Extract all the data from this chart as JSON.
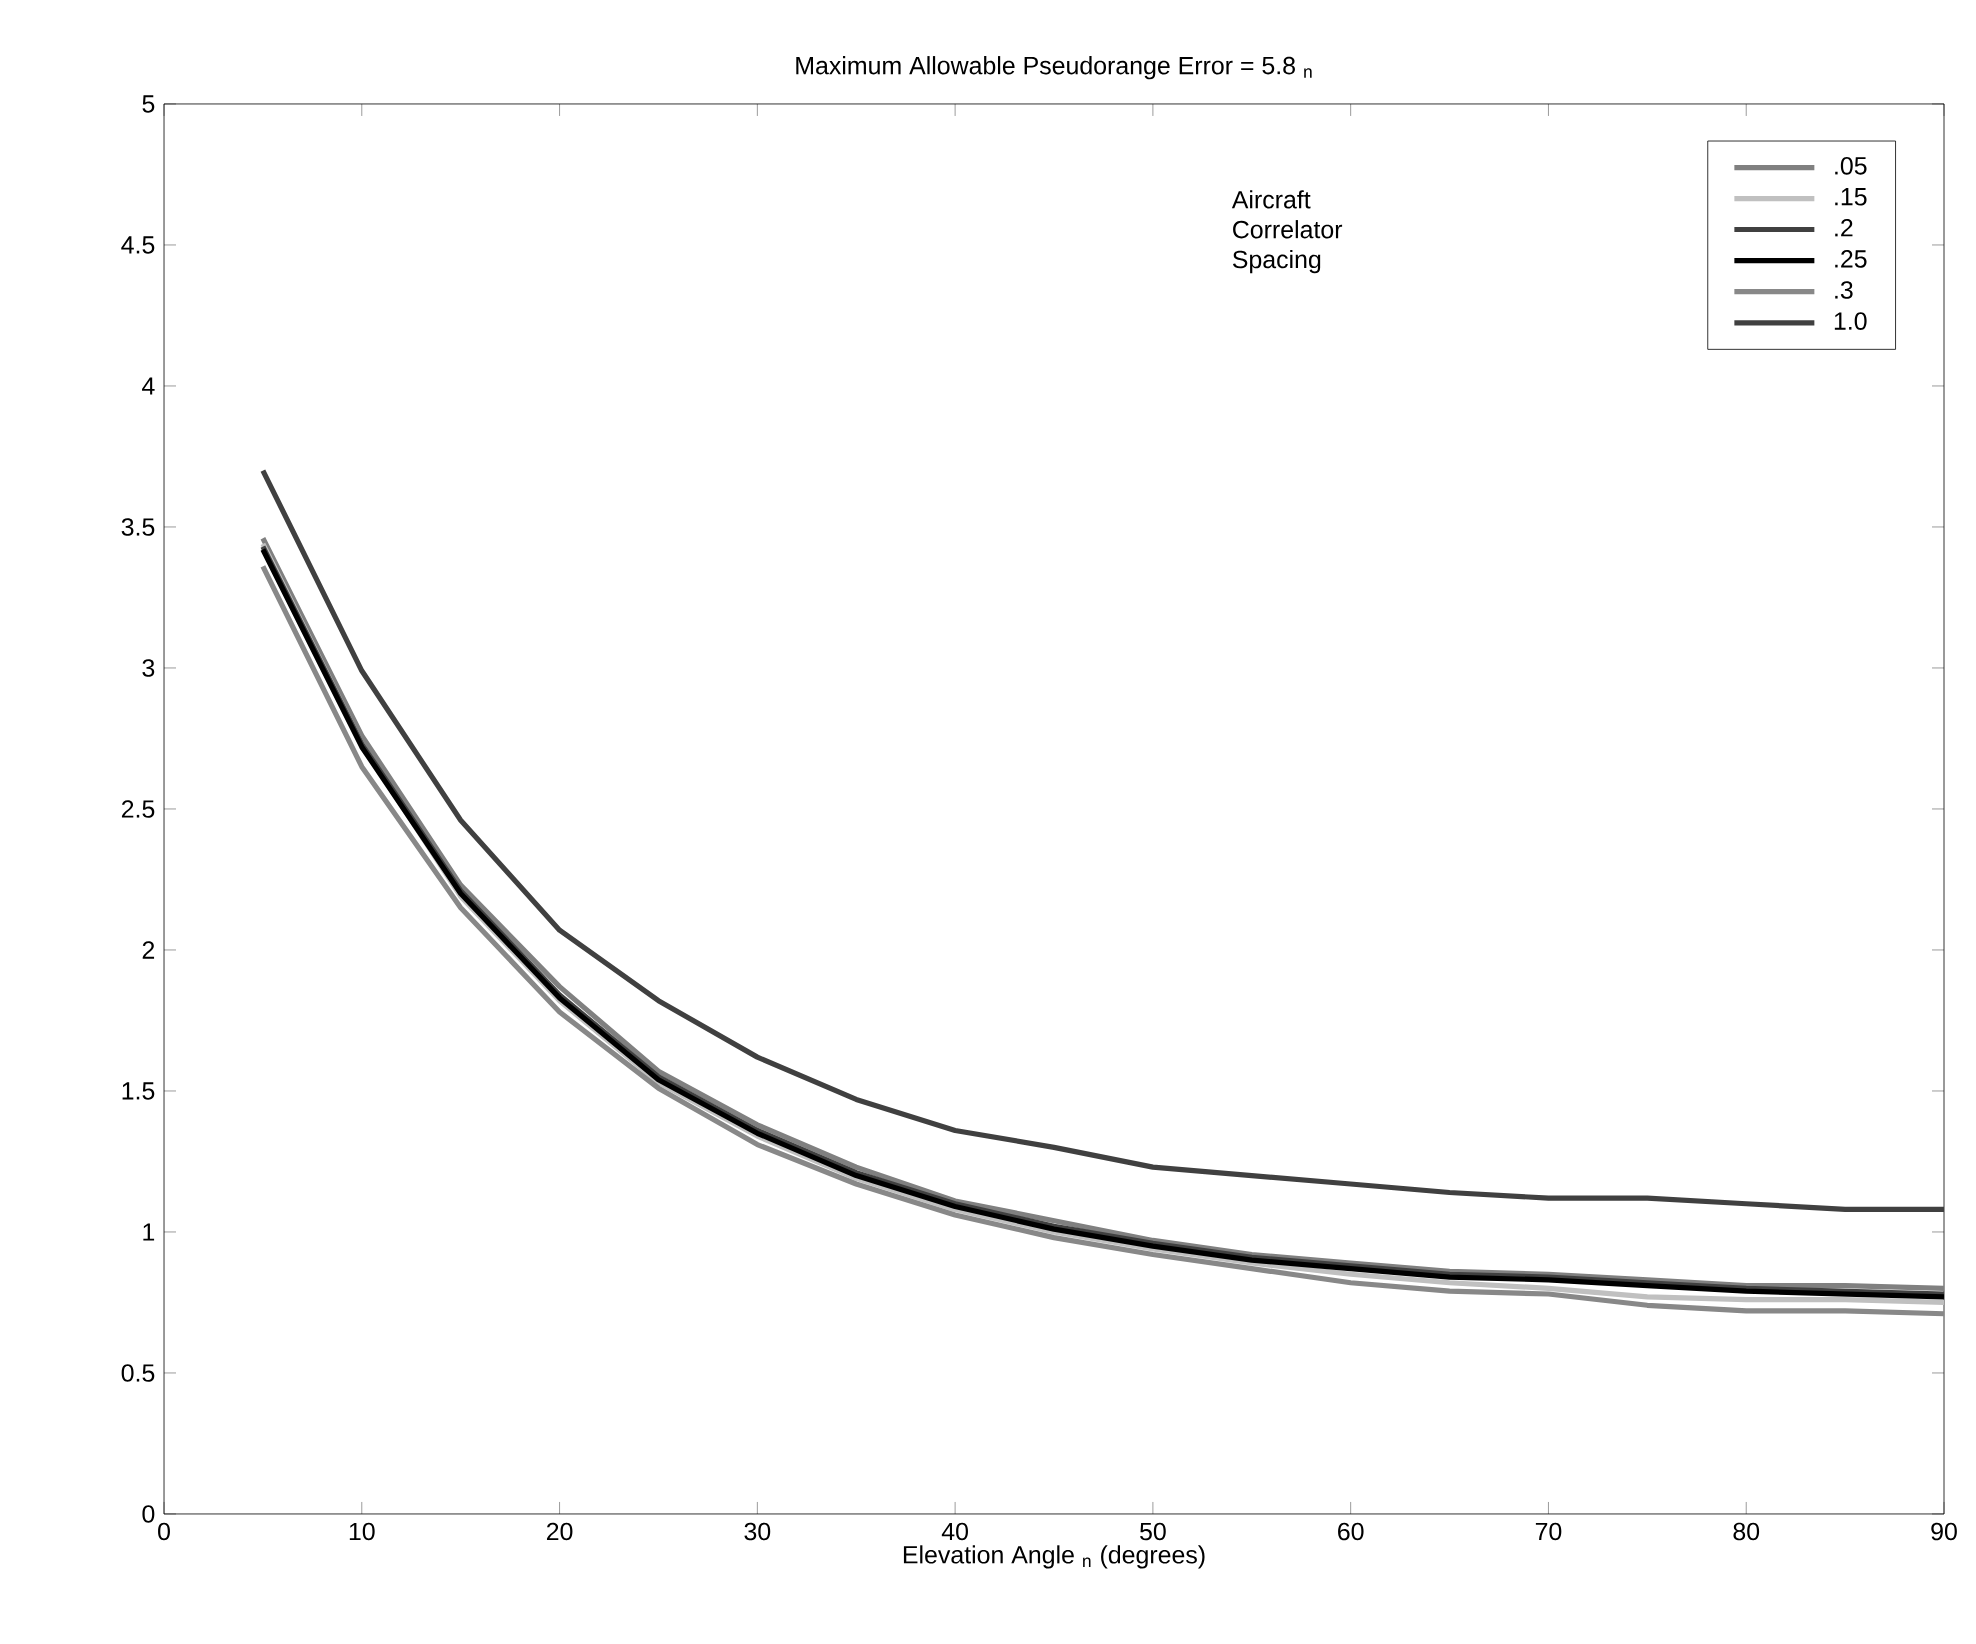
{
  "chart_data": {
    "type": "line",
    "title": "Maximum Allowable Pseudorange Error = 5.8 $_{n}$",
    "xlabel": "Elevation Angle $_{n}$ (degrees)",
    "legend_title": "Aircraft Correlator Spacing",
    "x": [
      5,
      10,
      15,
      20,
      25,
      30,
      35,
      40,
      45,
      50,
      55,
      60,
      65,
      70,
      75,
      80,
      85,
      90
    ],
    "series": [
      {
        "name": ".05",
        "color": "#808080",
        "values": [
          3.46,
          2.76,
          2.23,
          1.87,
          1.57,
          1.38,
          1.23,
          1.11,
          1.04,
          0.97,
          0.92,
          0.89,
          0.86,
          0.85,
          0.83,
          0.81,
          0.81,
          0.8
        ]
      },
      {
        "name": ".15",
        "color": "#c0c0c0",
        "values": [
          3.44,
          2.73,
          2.19,
          1.82,
          1.53,
          1.34,
          1.19,
          1.08,
          1.0,
          0.94,
          0.89,
          0.85,
          0.82,
          0.8,
          0.77,
          0.76,
          0.76,
          0.75
        ]
      },
      {
        "name": ".2",
        "color": "#404040",
        "values": [
          3.43,
          2.73,
          2.21,
          1.84,
          1.55,
          1.36,
          1.21,
          1.1,
          1.02,
          0.96,
          0.91,
          0.88,
          0.85,
          0.84,
          0.82,
          0.8,
          0.79,
          0.78
        ]
      },
      {
        "name": ".25",
        "color": "#000000",
        "values": [
          3.42,
          2.72,
          2.2,
          1.83,
          1.54,
          1.35,
          1.2,
          1.09,
          1.01,
          0.95,
          0.9,
          0.87,
          0.84,
          0.83,
          0.81,
          0.79,
          0.78,
          0.77
        ]
      },
      {
        "name": ".3",
        "color": "#888888",
        "values": [
          3.36,
          2.65,
          2.15,
          1.78,
          1.51,
          1.31,
          1.17,
          1.06,
          0.98,
          0.92,
          0.87,
          0.82,
          0.79,
          0.78,
          0.74,
          0.72,
          0.72,
          0.71
        ]
      },
      {
        "name": "1.0",
        "color": "#404040",
        "values": [
          3.7,
          2.99,
          2.46,
          2.07,
          1.82,
          1.62,
          1.47,
          1.36,
          1.3,
          1.23,
          1.2,
          1.17,
          1.14,
          1.12,
          1.12,
          1.1,
          1.08,
          1.08
        ]
      }
    ],
    "xlim": [
      0,
      90
    ],
    "ylim": [
      0,
      5
    ],
    "xticks": [
      0,
      10,
      20,
      30,
      40,
      50,
      60,
      70,
      80,
      90
    ],
    "yticks": [
      0,
      0.5,
      1,
      1.5,
      2,
      2.5,
      3,
      3.5,
      4,
      4.5,
      5
    ],
    "legend": "top right",
    "grid": false,
    "marker": "none",
    "line_style": "solid"
  }
}
